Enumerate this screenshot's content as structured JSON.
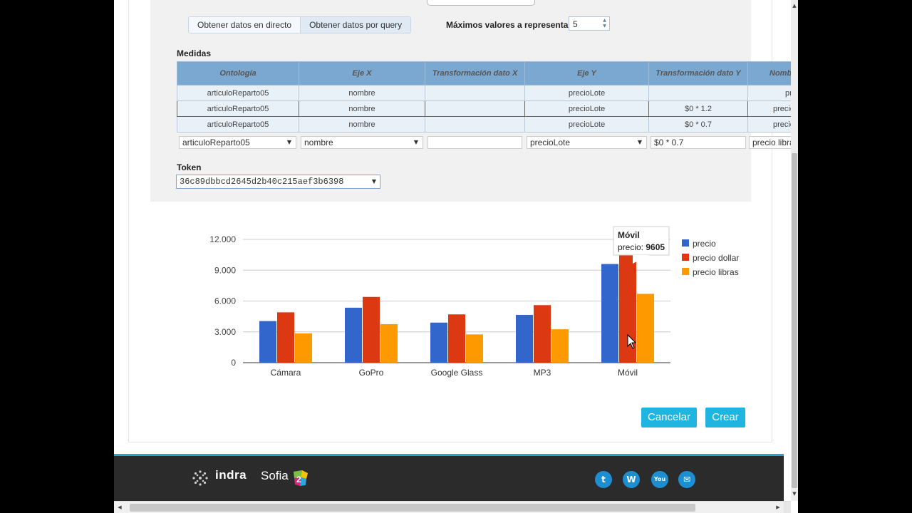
{
  "tabs": {
    "live": "Obtener datos en directo",
    "query": "Obtener datos por query"
  },
  "max_values": {
    "label": "Máximos valores a representar",
    "value": "5"
  },
  "measures": {
    "title": "Medidas",
    "headers": [
      "Ontología",
      "Eje X",
      "Transformación dato X",
      "Eje Y",
      "Transformación dato Y",
      "Nombre"
    ],
    "rows": [
      [
        "articuloReparto05",
        "nombre",
        "",
        "precioLote",
        "",
        "precio"
      ],
      [
        "articuloReparto05",
        "nombre",
        "",
        "precioLote",
        "$0 * 1.2",
        "precio dollar"
      ],
      [
        "articuloReparto05",
        "nombre",
        "",
        "precioLote",
        "$0 * 0.7",
        "precio libras"
      ]
    ],
    "edit": {
      "ontology": "articuloReparto05",
      "x_axis": "nombre",
      "x_transform": "",
      "y_axis": "precioLote",
      "y_transform": "$0 * 0.7",
      "name": "precio libras"
    }
  },
  "token": {
    "label": "Token",
    "value": "36c89dbbcd2645d2b40c215aef3b6398"
  },
  "chart_data": {
    "type": "bar",
    "categories": [
      "Cámara",
      "GoPro",
      "Google Glass",
      "MP3",
      "Móvil"
    ],
    "series": [
      {
        "name": "precio",
        "color": "#3366cc",
        "values": [
          4050,
          5350,
          3900,
          4650,
          9605
        ]
      },
      {
        "name": "precio dollar",
        "color": "#dc3912",
        "values": [
          4900,
          6400,
          4700,
          5600,
          11526
        ]
      },
      {
        "name": "precio libras",
        "color": "#ff9900",
        "values": [
          2850,
          3750,
          2750,
          3250,
          6700
        ]
      }
    ],
    "yticks": [
      "0",
      "3.000",
      "6.000",
      "9.000",
      "12.000"
    ],
    "ylim": [
      0,
      12000
    ],
    "grid": true,
    "legend": "right",
    "tooltip": {
      "title": "Móvil",
      "label": "precio:",
      "value": "9605"
    }
  },
  "buttons": {
    "cancel": "Cancelar",
    "create": "Crear"
  },
  "footer": {
    "brand1": "indra",
    "brand2": "Sofia"
  }
}
